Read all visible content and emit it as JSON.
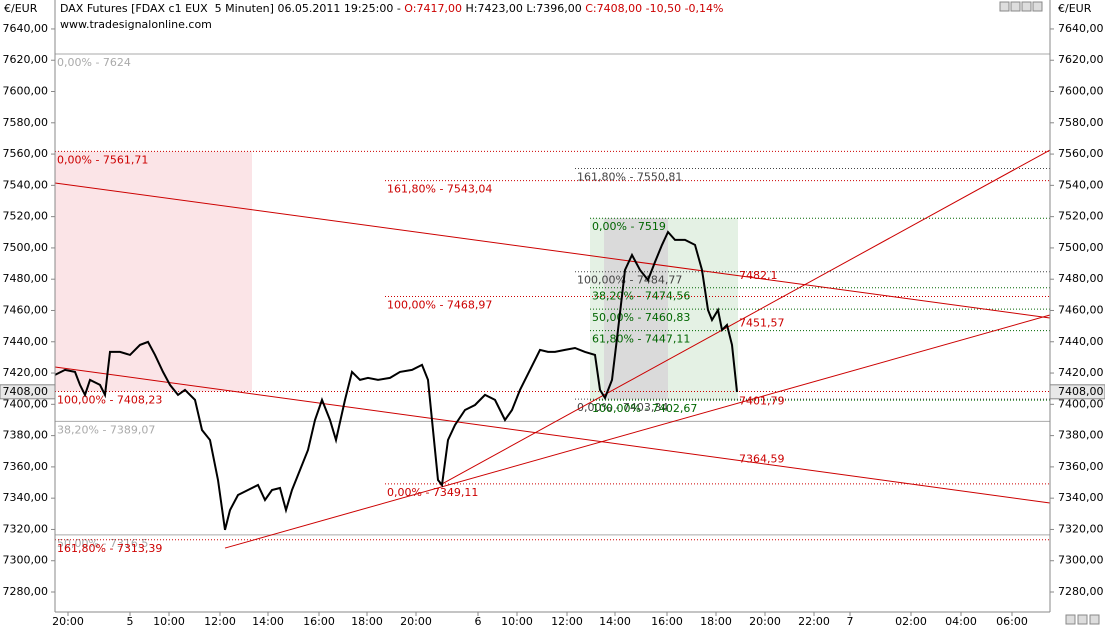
{
  "chart_data": {
    "type": "line",
    "axis_unit": "€/EUR",
    "title_parts": [
      {
        "text": "DAX Futures [FDAX c1 EUX  5 Minuten] 06.05.2011 19:25:00 - ",
        "color": "#000000"
      },
      {
        "text": "O:7417,00",
        "color": "#cc0000"
      },
      {
        "text": " H:7423,00 L:7396,00 ",
        "color": "#000000"
      },
      {
        "text": "C:7408,00 -10,50 -0,14%",
        "color": "#cc0000"
      }
    ],
    "subtitle": "www.tradesignalonline.com",
    "color": "#000000",
    "x": [
      0,
      10,
      20,
      25,
      30,
      35,
      45,
      50,
      55,
      65,
      75,
      85,
      93,
      100,
      108,
      115,
      123,
      130,
      140,
      147,
      155,
      163,
      170,
      175,
      183,
      193,
      203,
      210,
      217,
      225,
      231,
      237,
      245,
      253,
      260,
      267,
      275,
      281,
      290,
      297,
      305,
      313,
      323,
      335,
      345,
      357,
      367,
      373,
      377,
      383,
      387,
      393,
      400,
      410,
      420,
      430,
      440,
      450,
      457,
      465,
      475,
      485,
      493,
      500,
      510,
      520,
      530,
      540,
      545,
      550,
      557,
      563,
      570,
      577,
      585,
      593,
      600,
      607,
      613,
      620,
      630,
      640,
      647,
      653,
      657,
      663,
      667,
      672,
      677,
      682
    ],
    "values": [
      7418.8,
      7422,
      7420.7,
      7412.4,
      7406,
      7415.6,
      7412.4,
      7406,
      7433.5,
      7433.5,
      7431.6,
      7438,
      7439.9,
      7431.6,
      7420.7,
      7412.4,
      7406,
      7409.2,
      7402.8,
      7383.6,
      7377.2,
      7351.6,
      7319.7,
      7332.4,
      7342,
      7345.2,
      7348.4,
      7338.8,
      7345.2,
      7346.5,
      7332.4,
      7345.2,
      7358,
      7370.8,
      7390,
      7402.8,
      7390,
      7377.2,
      7402.8,
      7420.7,
      7415.6,
      7416.9,
      7415.6,
      7416.9,
      7420.7,
      7422,
      7425.2,
      7415.6,
      7390,
      7351.6,
      7348.4,
      7377.2,
      7386.8,
      7396.4,
      7399.6,
      7406,
      7402.8,
      7390,
      7396.4,
      7409.2,
      7422,
      7434.8,
      7433.5,
      7433.5,
      7434.8,
      7436,
      7433.5,
      7431.6,
      7409.2,
      7404.1,
      7415.6,
      7447.5,
      7485.9,
      7495.5,
      7485.9,
      7479.5,
      7491,
      7501.9,
      7510.2,
      7505.1,
      7505.1,
      7501.9,
      7485.9,
      7460.3,
      7453.9,
      7460.3,
      7447.5,
      7450.7,
      7438,
      7407.9
    ],
    "xlim": [
      0,
      995
    ],
    "ylim": [
      7268.5,
      7647
    ],
    "xticks": [
      {
        "value": 13,
        "label": "20:00"
      },
      {
        "value": 75,
        "label": "5"
      },
      {
        "value": 114,
        "label": "10:00"
      },
      {
        "value": 165,
        "label": "12:00"
      },
      {
        "value": 213,
        "label": "14:00"
      },
      {
        "value": 264,
        "label": "16:00"
      },
      {
        "value": 312,
        "label": "18:00"
      },
      {
        "value": 361,
        "label": "20:00"
      },
      {
        "value": 423,
        "label": "6"
      },
      {
        "value": 462,
        "label": "10:00"
      },
      {
        "value": 512,
        "label": "12:00"
      },
      {
        "value": 560,
        "label": "14:00"
      },
      {
        "value": 612,
        "label": "16:00"
      },
      {
        "value": 661,
        "label": "18:00"
      },
      {
        "value": 710,
        "label": "20:00"
      },
      {
        "value": 759,
        "label": "22:00"
      },
      {
        "value": 795,
        "label": "7"
      },
      {
        "value": 856,
        "label": "02:00"
      },
      {
        "value": 906,
        "label": "04:00"
      },
      {
        "value": 957,
        "label": "06:00"
      }
    ],
    "yticks": [
      {
        "value": 7280,
        "label": "7280,00"
      },
      {
        "value": 7300,
        "label": "7300,00"
      },
      {
        "value": 7320,
        "label": "7320,00"
      },
      {
        "value": 7340,
        "label": "7340,00"
      },
      {
        "value": 7360,
        "label": "7360,00"
      },
      {
        "value": 7380,
        "label": "7380,00"
      },
      {
        "value": 7400,
        "label": "7400,00"
      },
      {
        "value": 7420,
        "label": "7420,00"
      },
      {
        "value": 7440,
        "label": "7440,00"
      },
      {
        "value": 7460,
        "label": "7460,00"
      },
      {
        "value": 7480,
        "label": "7480,00"
      },
      {
        "value": 7500,
        "label": "7500,00"
      },
      {
        "value": 7520,
        "label": "7520,00"
      },
      {
        "value": 7540,
        "label": "7540,00"
      },
      {
        "value": 7560,
        "label": "7560,00"
      },
      {
        "value": 7580,
        "label": "7580,00"
      },
      {
        "value": 7600,
        "label": "7600,00"
      },
      {
        "value": 7620,
        "label": "7620,00"
      },
      {
        "value": 7640,
        "label": "7640,00"
      }
    ],
    "price_tag": {
      "label": "7408,00",
      "value": 7408
    },
    "zones": [
      {
        "x": [
          0,
          197
        ],
        "y": [
          7408.23,
          7561.71
        ],
        "color": "#fbe4e7"
      },
      {
        "x": [
          535,
          683
        ],
        "y": [
          7402.67,
          7519
        ],
        "color": "#e4f1e4"
      },
      {
        "x": [
          549,
          613
        ],
        "y": [
          7403.34,
          7519
        ],
        "color": "#dadada"
      }
    ],
    "levels": [
      {
        "label": "0,00% - 7624",
        "value": 7624,
        "x0": 0,
        "color": "#aaaaaa",
        "dashed": false
      },
      {
        "label": "0,00% - 7561,71",
        "value": 7561.71,
        "x0": 0,
        "color": "#cc0000",
        "dashed": true
      },
      {
        "label": "161,80% - 7550,81",
        "value": 7550.81,
        "x0": 520,
        "color": "#444444",
        "dashed": true
      },
      {
        "label": "161,80% - 7543,04",
        "value": 7543.04,
        "x0": 330,
        "color": "#cc0000",
        "dashed": true
      },
      {
        "label": "0,00% - 7519",
        "value": 7519,
        "x0": 535,
        "color": "#006600",
        "dashed": true
      },
      {
        "label": "100,00% - 7484,77",
        "value": 7484.77,
        "x0": 520,
        "color": "#444444",
        "dashed": true
      },
      {
        "label": "38,20% - 7474,56",
        "value": 7474.56,
        "x0": 535,
        "color": "#006600",
        "dashed": true
      },
      {
        "label": "100,00% - 7468,97",
        "value": 7468.97,
        "x0": 330,
        "color": "#cc0000",
        "dashed": true
      },
      {
        "label": "50,00% - 7460,83",
        "value": 7460.83,
        "x0": 535,
        "color": "#006600",
        "dashed": true
      },
      {
        "label": "61,80% - 7447,11",
        "value": 7447.11,
        "x0": 535,
        "color": "#006600",
        "dashed": true
      },
      {
        "label": "100,00% - 7408,23",
        "value": 7408.23,
        "x0": 0,
        "color": "#cc0000",
        "dashed": true
      },
      {
        "label": "0,00% - 7403,34",
        "value": 7403.34,
        "x0": 520,
        "color": "#444444",
        "dashed": true
      },
      {
        "label": "100,00% - 7402,67",
        "value": 7402.67,
        "x0": 535,
        "color": "#006600",
        "dashed": true
      },
      {
        "label": "38,20% - 7389,07",
        "value": 7389.07,
        "x0": 0,
        "color": "#aaaaaa",
        "dashed": false
      },
      {
        "label": "0,00% - 7349,11",
        "value": 7349.11,
        "x0": 330,
        "color": "#cc0000",
        "dashed": true
      },
      {
        "label": "50,00% - 7316,5",
        "value": 7316.5,
        "x0": 0,
        "color": "#aaaaaa",
        "dashed": false
      },
      {
        "label": "161,80% - 7313,39",
        "value": 7313.39,
        "x0": 0,
        "color": "#cc0000",
        "dashed": true
      }
    ],
    "trendlines": [
      {
        "x": [
          0,
          995
        ],
        "values": [
          7541.5,
          7455.2
        ],
        "color": "#cc0000"
      },
      {
        "x": [
          0,
          995
        ],
        "values": [
          7423.9,
          7336.9
        ],
        "color": "#cc0000"
      },
      {
        "x": [
          170,
          995
        ],
        "values": [
          7308.1,
          7457.1
        ],
        "color": "#cc0000"
      },
      {
        "x": [
          385,
          995
        ],
        "values": [
          7348.4,
          7562.6
        ],
        "color": "#cc0000"
      }
    ],
    "annotations": [
      {
        "label": "7482,1",
        "value": 7482.1,
        "x": 682
      },
      {
        "label": "7451,57",
        "value": 7451.57,
        "x": 682
      },
      {
        "label": "7401,79",
        "value": 7401.79,
        "x": 682
      },
      {
        "label": "7364,59",
        "value": 7364.59,
        "x": 682
      }
    ]
  }
}
